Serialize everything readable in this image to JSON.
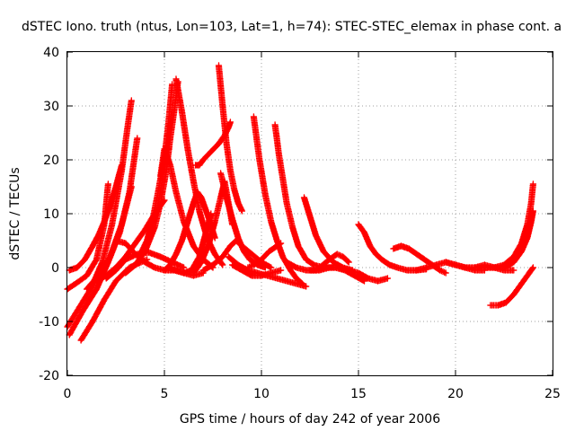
{
  "chart_data": {
    "type": "scatter",
    "title": "dSTEC Iono. truth (ntus, Lon=103, Lat=1, h=74): STEC-STEC_elemax in phase cont. a",
    "xlabel": "GPS time / hours of day 242 of year 2006",
    "ylabel": "dSTEC  / TECUs",
    "xlim": [
      0,
      25
    ],
    "ylim": [
      -20,
      40
    ],
    "xticks": [
      0,
      5,
      10,
      15,
      20,
      25
    ],
    "yticks": [
      -20,
      -10,
      0,
      10,
      20,
      30,
      40
    ],
    "grid": true,
    "marker": "+",
    "color": "#ff0000",
    "series": [
      {
        "x": [
          0.0,
          0.5,
          1.0,
          1.5,
          1.9,
          2.1
        ],
        "y": [
          -4.0,
          -2.8,
          -1.5,
          1.5,
          8.0,
          15.5
        ]
      },
      {
        "x": [
          0.0,
          0.6,
          1.2,
          1.8,
          2.3,
          2.8,
          3.1,
          3.3
        ],
        "y": [
          -11.0,
          -7.5,
          -4.0,
          1.0,
          8.0,
          18.0,
          26.0,
          31.0
        ]
      },
      {
        "x": [
          0.1,
          0.8,
          1.5,
          2.1,
          2.7,
          3.2,
          3.6
        ],
        "y": [
          -12.5,
          -8.0,
          -4.0,
          1.0,
          6.5,
          14.0,
          24.0
        ]
      },
      {
        "x": [
          0.7,
          1.3,
          1.9,
          2.5,
          3.2,
          3.8,
          4.1
        ],
        "y": [
          -13.5,
          -10.0,
          -6.0,
          -2.5,
          0.0,
          1.0,
          1.5
        ]
      },
      {
        "x": [
          0.1,
          0.5,
          0.9,
          1.3,
          1.6,
          1.9,
          2.2,
          2.5,
          2.8
        ],
        "y": [
          -0.5,
          0.0,
          1.5,
          4.0,
          6.0,
          8.5,
          11.5,
          15.0,
          19.0
        ]
      },
      {
        "x": [
          1.0,
          1.6,
          2.2,
          2.8,
          3.3
        ],
        "y": [
          -4.0,
          -1.5,
          2.0,
          8.0,
          15.0
        ]
      },
      {
        "x": [
          2.5,
          3.0,
          3.5,
          4.0,
          4.5,
          5.0,
          5.5,
          6.0,
          6.5,
          7.0
        ],
        "y": [
          5.0,
          4.5,
          2.5,
          1.0,
          0.0,
          -0.5,
          -0.5,
          -1.0,
          -1.5,
          -1.0
        ]
      },
      {
        "x": [
          2.0,
          2.5,
          3.0,
          3.6,
          4.2,
          4.8,
          5.4,
          6.0
        ],
        "y": [
          -2.0,
          -0.5,
          1.5,
          2.5,
          2.8,
          2.0,
          1.0,
          0.0
        ]
      },
      {
        "x": [
          1.5,
          2.0,
          2.5,
          3.0,
          3.5,
          4.0,
          4.5,
          5.0
        ],
        "y": [
          -2.5,
          -1.5,
          0.0,
          2.0,
          4.5,
          7.0,
          10.0,
          12.5
        ]
      },
      {
        "x": [
          3.0,
          3.5,
          4.0,
          4.5,
          4.8,
          5.1,
          5.3,
          5.5,
          5.7
        ],
        "y": [
          -1.0,
          0.5,
          3.0,
          7.5,
          12.0,
          18.0,
          24.0,
          29.0,
          34.5
        ]
      },
      {
        "x": [
          3.7,
          4.1,
          4.4,
          4.7,
          5.0,
          5.2,
          5.4
        ],
        "y": [
          2.0,
          5.0,
          9.0,
          14.5,
          20.5,
          26.5,
          34.0
        ]
      },
      {
        "x": [
          4.8,
          5.0,
          5.3,
          5.6,
          6.0,
          6.5,
          7.0,
          7.5
        ],
        "y": [
          17.0,
          22.0,
          19.0,
          14.0,
          8.5,
          4.0,
          1.5,
          0.0
        ]
      },
      {
        "x": [
          5.6,
          5.9,
          6.2,
          6.5,
          6.8,
          7.2,
          7.6,
          8.0
        ],
        "y": [
          35.0,
          29.0,
          22.0,
          16.0,
          10.5,
          5.5,
          2.5,
          0.5
        ]
      },
      {
        "x": [
          5.0,
          5.3,
          5.6,
          5.9,
          6.2,
          6.5,
          6.7,
          6.9,
          7.3,
          7.6
        ],
        "y": [
          -0.5,
          0.5,
          2.5,
          5.0,
          8.5,
          12.0,
          14.0,
          13.0,
          9.0,
          5.5
        ]
      },
      {
        "x": [
          5.2,
          5.6,
          6.0,
          6.4,
          6.8,
          7.1,
          7.4
        ],
        "y": [
          0.0,
          -0.5,
          -1.0,
          -0.5,
          2.0,
          6.0,
          10.0
        ]
      },
      {
        "x": [
          6.6,
          6.8,
          7.0,
          7.4,
          7.8,
          8.1,
          8.3,
          8.4
        ],
        "y": [
          19.0,
          19.0,
          20.0,
          21.5,
          23.0,
          24.5,
          26.0,
          27.0
        ]
      },
      {
        "x": [
          6.5,
          6.9,
          7.3,
          7.6,
          7.9,
          8.1,
          8.3,
          8.5
        ],
        "y": [
          -1.0,
          1.0,
          4.5,
          8.5,
          13.0,
          16.0,
          12.0,
          8.0
        ]
      },
      {
        "x": [
          7.8,
          8.0,
          8.2,
          8.4,
          8.6,
          8.8,
          9.0
        ],
        "y": [
          37.5,
          30.0,
          23.0,
          18.0,
          14.5,
          12.0,
          10.5
        ]
      },
      {
        "x": [
          7.9,
          8.2,
          8.5,
          8.8,
          9.1,
          9.4,
          9.8,
          10.2
        ],
        "y": [
          17.5,
          13.0,
          9.0,
          5.5,
          3.0,
          1.5,
          0.5,
          0.0
        ]
      },
      {
        "x": [
          7.0,
          7.5,
          8.0,
          8.4,
          8.7,
          9.0,
          9.5,
          10.0,
          10.5
        ],
        "y": [
          -0.5,
          0.5,
          2.0,
          4.0,
          5.0,
          4.0,
          2.5,
          1.0,
          0.0
        ]
      },
      {
        "x": [
          8.5,
          9.0,
          9.5,
          10.0,
          10.5,
          11.0
        ],
        "y": [
          0.5,
          -0.5,
          -1.5,
          -1.5,
          -1.0,
          -0.5
        ]
      },
      {
        "x": [
          9.6,
          9.9,
          10.2,
          10.5,
          10.8,
          11.1,
          11.5,
          11.8,
          12.1
        ],
        "y": [
          28.0,
          20.0,
          13.5,
          8.5,
          5.0,
          2.0,
          -0.5,
          -2.0,
          -3.0
        ]
      },
      {
        "x": [
          10.7,
          10.9,
          11.1,
          11.3,
          11.6,
          11.9,
          12.3,
          12.7,
          13.2
        ],
        "y": [
          26.5,
          21.0,
          16.5,
          12.0,
          7.5,
          4.0,
          1.5,
          0.5,
          0.0
        ]
      },
      {
        "x": [
          8.3,
          8.8,
          9.3,
          9.8,
          10.3,
          10.8,
          11.3,
          11.8,
          12.3
        ],
        "y": [
          2.0,
          0.5,
          -0.5,
          -1.0,
          -1.5,
          -2.0,
          -2.5,
          -3.0,
          -3.5
        ]
      },
      {
        "x": [
          9.3,
          9.6,
          10.0,
          10.4,
          10.8,
          11.0
        ],
        "y": [
          0.0,
          0.5,
          1.5,
          3.0,
          4.0,
          4.5
        ]
      },
      {
        "x": [
          12.2,
          12.5,
          12.8,
          13.2,
          13.7,
          14.2,
          14.7
        ],
        "y": [
          13.0,
          9.5,
          6.0,
          3.0,
          1.0,
          0.0,
          -0.5
        ]
      },
      {
        "x": [
          11.3,
          11.8,
          12.3,
          12.8,
          13.3,
          13.8,
          14.3,
          14.8,
          15.3
        ],
        "y": [
          1.0,
          0.0,
          -0.5,
          -0.5,
          0.0,
          0.0,
          -0.5,
          -1.5,
          -2.5
        ]
      },
      {
        "x": [
          12.5,
          13.0,
          13.5,
          14.0,
          14.5,
          15.0,
          15.5,
          16.0,
          16.5
        ],
        "y": [
          -0.5,
          -0.5,
          0.0,
          0.0,
          -0.5,
          -1.0,
          -2.0,
          -2.5,
          -2.0
        ]
      },
      {
        "x": [
          13.0,
          13.5,
          13.9,
          14.2,
          14.5
        ],
        "y": [
          0.0,
          1.5,
          2.5,
          2.0,
          1.0
        ]
      },
      {
        "x": [
          15.0,
          15.3,
          15.6,
          15.9,
          16.2,
          16.6,
          17.0,
          17.5,
          18.0,
          18.5
        ],
        "y": [
          8.0,
          6.5,
          4.0,
          2.5,
          1.5,
          0.5,
          0.0,
          -0.5,
          -0.5,
          -0.3
        ]
      },
      {
        "x": [
          16.8,
          17.2,
          17.6,
          18.0,
          18.4,
          18.8,
          19.2,
          19.5
        ],
        "y": [
          3.5,
          4.0,
          3.5,
          2.5,
          1.5,
          0.5,
          -0.5,
          -1.0
        ]
      },
      {
        "x": [
          18.0,
          18.5,
          19.0,
          19.5,
          20.0,
          20.5,
          21.0,
          21.5
        ],
        "y": [
          -0.5,
          0.0,
          0.5,
          1.0,
          0.5,
          0.0,
          -0.5,
          -0.5
        ]
      },
      {
        "x": [
          19.5,
          20.0,
          20.5,
          21.0,
          21.5,
          22.0,
          22.5,
          23.0
        ],
        "y": [
          1.0,
          0.5,
          0.0,
          0.0,
          0.5,
          0.0,
          -0.5,
          -0.5
        ]
      },
      {
        "x": [
          21.0,
          21.5,
          22.0,
          22.5,
          23.0,
          23.4,
          23.7,
          23.9,
          24.0
        ],
        "y": [
          0.0,
          0.0,
          0.0,
          0.5,
          2.0,
          4.5,
          8.0,
          12.0,
          15.5
        ]
      },
      {
        "x": [
          21.5,
          22.0,
          22.5,
          23.0,
          23.4,
          23.7,
          23.9,
          24.0
        ],
        "y": [
          0.0,
          0.0,
          0.0,
          1.0,
          3.0,
          5.5,
          8.5,
          10.5
        ]
      },
      {
        "x": [
          21.8,
          22.2,
          22.6,
          23.0,
          23.4,
          23.8,
          24.0
        ],
        "y": [
          -7.0,
          -7.0,
          -6.5,
          -5.0,
          -3.0,
          -1.0,
          0.0
        ]
      }
    ]
  }
}
